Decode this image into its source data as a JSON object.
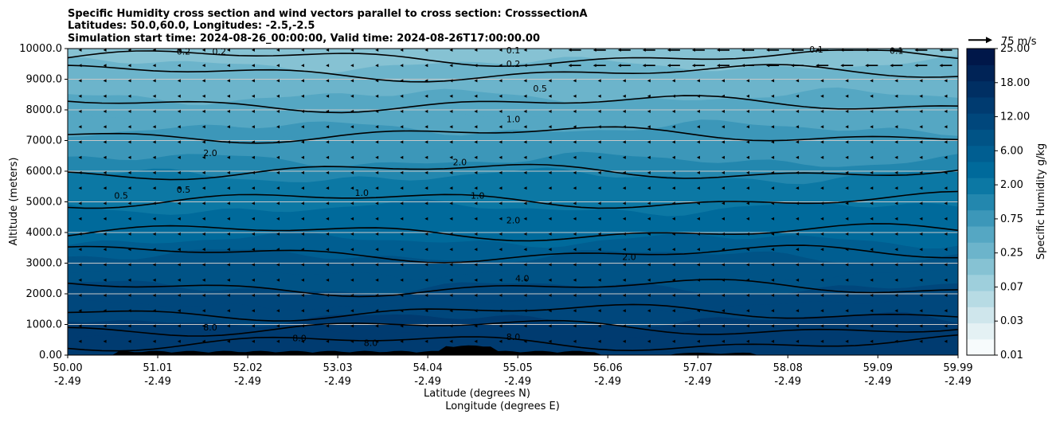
{
  "title": {
    "line1": "Specific Humidity cross section and wind vectors parallel to cross section: CrosssectionA",
    "line2": "Latitudes: 50.0,60.0, Longitudes: -2.5,-2.5",
    "line3": "Simulation start time: 2024-08-26_00:00:00, Valid time: 2024-08-26T17:00:00.00"
  },
  "chart_data": {
    "type": "heatmap",
    "ylabel": "Altitude (meters)",
    "xlabel_lat": "Latitude (degrees N)",
    "xlabel_lon": "Longitude (degrees E)",
    "xlim": [
      50.0,
      59.99
    ],
    "ylim": [
      0,
      10000
    ],
    "grid": "horizontal",
    "xticks": [
      {
        "lat": "50.00",
        "lon": "-2.49"
      },
      {
        "lat": "51.01",
        "lon": "-2.49"
      },
      {
        "lat": "52.02",
        "lon": "-2.49"
      },
      {
        "lat": "53.03",
        "lon": "-2.49"
      },
      {
        "lat": "54.04",
        "lon": "-2.49"
      },
      {
        "lat": "55.05",
        "lon": "-2.49"
      },
      {
        "lat": "56.06",
        "lon": "-2.49"
      },
      {
        "lat": "57.07",
        "lon": "-2.49"
      },
      {
        "lat": "58.08",
        "lon": "-2.49"
      },
      {
        "lat": "59.09",
        "lon": "-2.49"
      },
      {
        "lat": "59.99",
        "lon": "-2.49"
      }
    ],
    "yticks": [
      "0.00",
      "1000.0",
      "2000.0",
      "3000.0",
      "4000.0",
      "5000.0",
      "6000.0",
      "7000.0",
      "8000.0",
      "9000.0",
      "10000.0"
    ],
    "colorbar": {
      "label": "Specific Humidity g/kg",
      "levels": [
        "0.01",
        "0.03",
        "0.07",
        "0.25",
        "0.75",
        "2.00",
        "6.00",
        "12.00",
        "18.00",
        "25.00"
      ],
      "colors": [
        "#f7fbfc",
        "#e4f1f4",
        "#cfe6ec",
        "#b7dbe4",
        "#9ecfdc",
        "#86c2d3",
        "#6cb4cb",
        "#55a7c3",
        "#3c97b9",
        "#2387ae",
        "#0c78a4",
        "#006a9b",
        "#005e91",
        "#005386",
        "#00477c",
        "#003b70",
        "#002f63",
        "#002356",
        "#001749"
      ],
      "arrow_key_label": "75 m/s"
    },
    "contour_labels": [
      {
        "text": "0.1",
        "lat": 55.0,
        "alt": 9850
      },
      {
        "text": "0.1",
        "lat": 58.4,
        "alt": 9870
      },
      {
        "text": "0.1",
        "lat": 59.3,
        "alt": 9830
      },
      {
        "text": "0.2",
        "lat": 51.3,
        "alt": 9800
      },
      {
        "text": "0.2",
        "lat": 51.7,
        "alt": 9800
      },
      {
        "text": "0.2",
        "lat": 55.0,
        "alt": 9400
      },
      {
        "text": "0.5",
        "lat": 55.3,
        "alt": 8600
      },
      {
        "text": "0.5",
        "lat": 50.6,
        "alt": 5100
      },
      {
        "text": "0.5",
        "lat": 51.3,
        "alt": 5300
      },
      {
        "text": "1.0",
        "lat": 55.0,
        "alt": 7600
      },
      {
        "text": "1.0",
        "lat": 53.3,
        "alt": 5200
      },
      {
        "text": "1.0",
        "lat": 54.6,
        "alt": 5100
      },
      {
        "text": "2.0",
        "lat": 51.6,
        "alt": 6500
      },
      {
        "text": "2.0",
        "lat": 54.4,
        "alt": 6200
      },
      {
        "text": "2.0",
        "lat": 55.0,
        "alt": 4300
      },
      {
        "text": "2.0",
        "lat": 56.3,
        "alt": 3100
      },
      {
        "text": "4.0",
        "lat": 55.1,
        "alt": 2400
      },
      {
        "text": "8.0",
        "lat": 51.6,
        "alt": 800
      },
      {
        "text": "8.0",
        "lat": 52.6,
        "alt": 450
      },
      {
        "text": "8.0",
        "lat": 53.4,
        "alt": 300
      },
      {
        "text": "8.0",
        "lat": 55.0,
        "alt": 500
      }
    ],
    "wind_field": "vectors mostly pointing left (southward), strongest near top of section north of 56N"
  }
}
